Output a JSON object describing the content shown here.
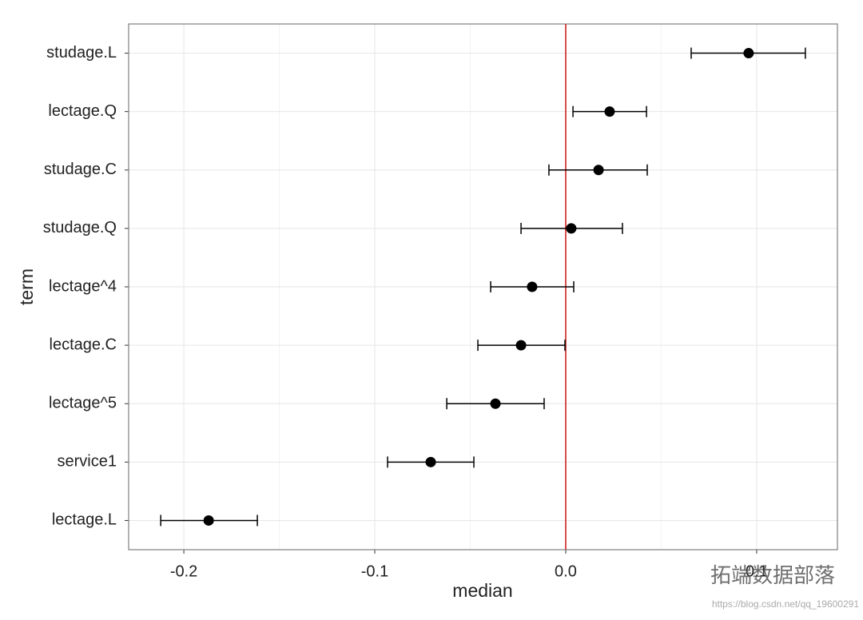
{
  "chart_data": {
    "type": "dotplot",
    "x_label": "median",
    "y_label": "term",
    "categories": [
      "studage.L",
      "lectage.Q",
      "studage.C",
      "studage.Q",
      "lectage^4",
      "lectage.C",
      "lectage^5",
      "service1",
      "lectage.L"
    ],
    "series": [
      {
        "color": "#000000",
        "values": [
          0.0958,
          0.023,
          0.0172,
          0.0029,
          -0.0176,
          -0.0234,
          -0.0368,
          -0.0707,
          -0.187
        ],
        "low": [
          0.0657,
          0.0038,
          -0.0088,
          -0.0234,
          -0.0393,
          -0.046,
          -0.0623,
          -0.0933,
          -0.2121
        ],
        "high": [
          0.1255,
          0.0423,
          0.0427,
          0.0297,
          0.0042,
          -0.0004,
          -0.0113,
          -0.0481,
          -0.1615
        ]
      }
    ],
    "xlim": [
      -0.2289,
      0.1423
    ],
    "xticks": [
      -0.2,
      -0.1,
      {
        "value": 0,
        "label": "0.0"
      },
      0.1
    ],
    "vline": {
      "value": 0,
      "color": "#cc2222"
    },
    "grid": true,
    "watermark": "拓端数据部落",
    "watermark_url": "https://blog.csdn.net/qq_19600291"
  }
}
